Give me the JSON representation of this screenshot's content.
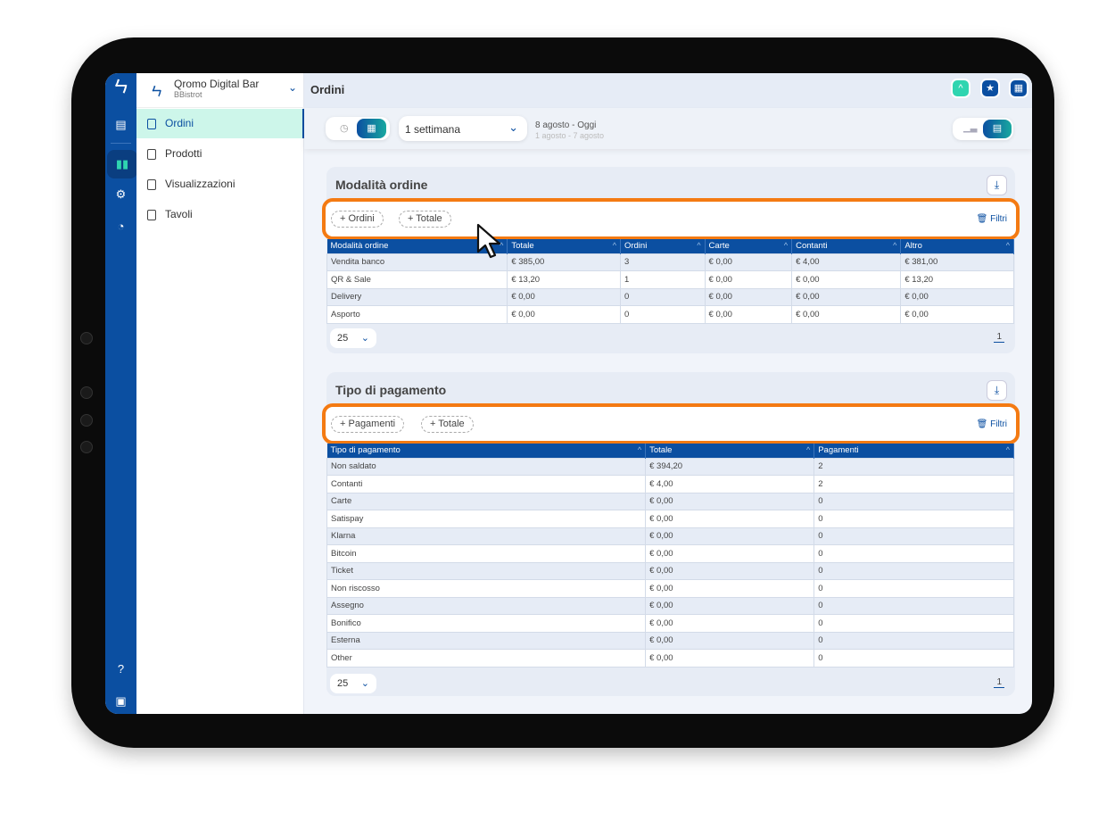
{
  "app": {
    "name": "Qromo Digital Bar",
    "subtitle": "BBistrot"
  },
  "header": {
    "title": "Ordini"
  },
  "nav": [
    {
      "label": "Ordini",
      "selected": true
    },
    {
      "label": "Prodotti"
    },
    {
      "label": "Visualizzazioni"
    },
    {
      "label": "Tavoli"
    }
  ],
  "filters": {
    "period": "1 settimana",
    "range": "8 agosto - Oggi",
    "compare_range": "1 agosto - 7 agosto"
  },
  "colors": {
    "primary": "#0b4fa1",
    "accent": "#2fd5b0",
    "highlight": "#f47a12"
  },
  "orders_card": {
    "title": "Modalità ordine",
    "chips": [
      "Ordini",
      "Totale"
    ],
    "filter_label": "Filtri",
    "columns": [
      "Modalità ordine",
      "Totale",
      "Ordini",
      "Carte",
      "Contanti",
      "Altro"
    ],
    "rows": [
      [
        "Vendita banco",
        "€ 385,00",
        "3",
        "€ 0,00",
        "€ 4,00",
        "€ 381,00"
      ],
      [
        "QR & Sale",
        "€ 13,20",
        "1",
        "€ 0,00",
        "€ 0,00",
        "€ 13,20"
      ],
      [
        "Delivery",
        "€ 0,00",
        "0",
        "€ 0,00",
        "€ 0,00",
        "€ 0,00"
      ],
      [
        "Asporto",
        "€ 0,00",
        "0",
        "€ 0,00",
        "€ 0,00",
        "€ 0,00"
      ]
    ],
    "page_size": "25",
    "page": "1"
  },
  "payments_card": {
    "title": "Tipo di pagamento",
    "chips": [
      "Pagamenti",
      "Totale"
    ],
    "filter_label": "Filtri",
    "columns": [
      "Tipo di pagamento",
      "Totale",
      "Pagamenti"
    ],
    "rows": [
      [
        "Non saldato",
        "€ 394,20",
        "2"
      ],
      [
        "Contanti",
        "€ 4,00",
        "2"
      ],
      [
        "Carte",
        "€ 0,00",
        "0"
      ],
      [
        "Satispay",
        "€ 0,00",
        "0"
      ],
      [
        "Klarna",
        "€ 0,00",
        "0"
      ],
      [
        "Bitcoin",
        "€ 0,00",
        "0"
      ],
      [
        "Ticket",
        "€ 0,00",
        "0"
      ],
      [
        "Non riscosso",
        "€ 0,00",
        "0"
      ],
      [
        "Assegno",
        "€ 0,00",
        "0"
      ],
      [
        "Bonifico",
        "€ 0,00",
        "0"
      ],
      [
        "Esterna",
        "€ 0,00",
        "0"
      ],
      [
        "Other",
        "€ 0,00",
        "0"
      ]
    ],
    "page_size": "25",
    "page": "1"
  }
}
